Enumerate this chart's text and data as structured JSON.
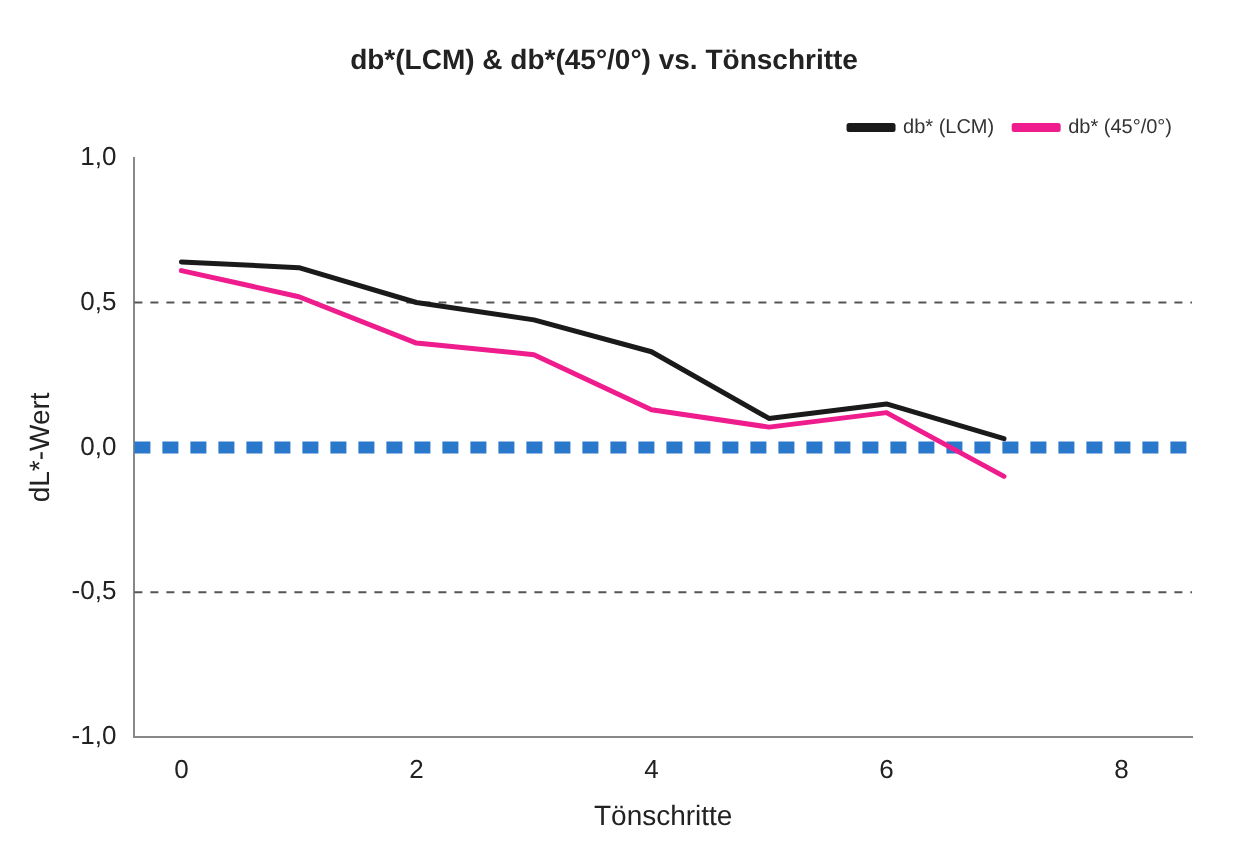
{
  "chart_data": {
    "type": "line",
    "title": "db*(LCM) & db*(45°/0°) vs. Tönschritte",
    "xlabel": "Tönschritte",
    "ylabel": "dL*-Wert",
    "x": [
      0,
      1,
      2,
      3,
      4,
      5,
      6,
      7
    ],
    "series": [
      {
        "name": "db* (LCM)",
        "color": "#1a1a1a",
        "values": [
          0.64,
          0.62,
          0.5,
          0.44,
          0.33,
          0.1,
          0.15,
          0.03
        ]
      },
      {
        "name": "db* (45°/0°)",
        "color": "#ee1c8c",
        "values": [
          0.61,
          0.52,
          0.36,
          0.32,
          0.13,
          0.07,
          0.12,
          -0.1
        ]
      }
    ],
    "xlim": [
      -0.4,
      8.6
    ],
    "xticks": [
      0,
      2,
      4,
      6,
      8
    ],
    "ylim": [
      -1,
      1
    ],
    "yticks": [
      {
        "value": -1,
        "label": "-1,0"
      },
      {
        "value": -0.5,
        "label": "-0,5"
      },
      {
        "value": 0,
        "label": "0,0"
      },
      {
        "value": 0.5,
        "label": "0,5"
      },
      {
        "value": 1,
        "label": "1,0"
      }
    ],
    "ref_lines": [
      {
        "axis": "y",
        "value": 0.5,
        "color": "#555555",
        "line_style": "dashed"
      },
      {
        "axis": "y",
        "value": -0.5,
        "color": "#555555",
        "line_style": "dashed"
      },
      {
        "axis": "y",
        "value": 0,
        "color": "#2a78cc",
        "line_style": "dotted"
      }
    ],
    "grid": false,
    "legend": "top right",
    "marker": "none",
    "line_style": "solid"
  }
}
